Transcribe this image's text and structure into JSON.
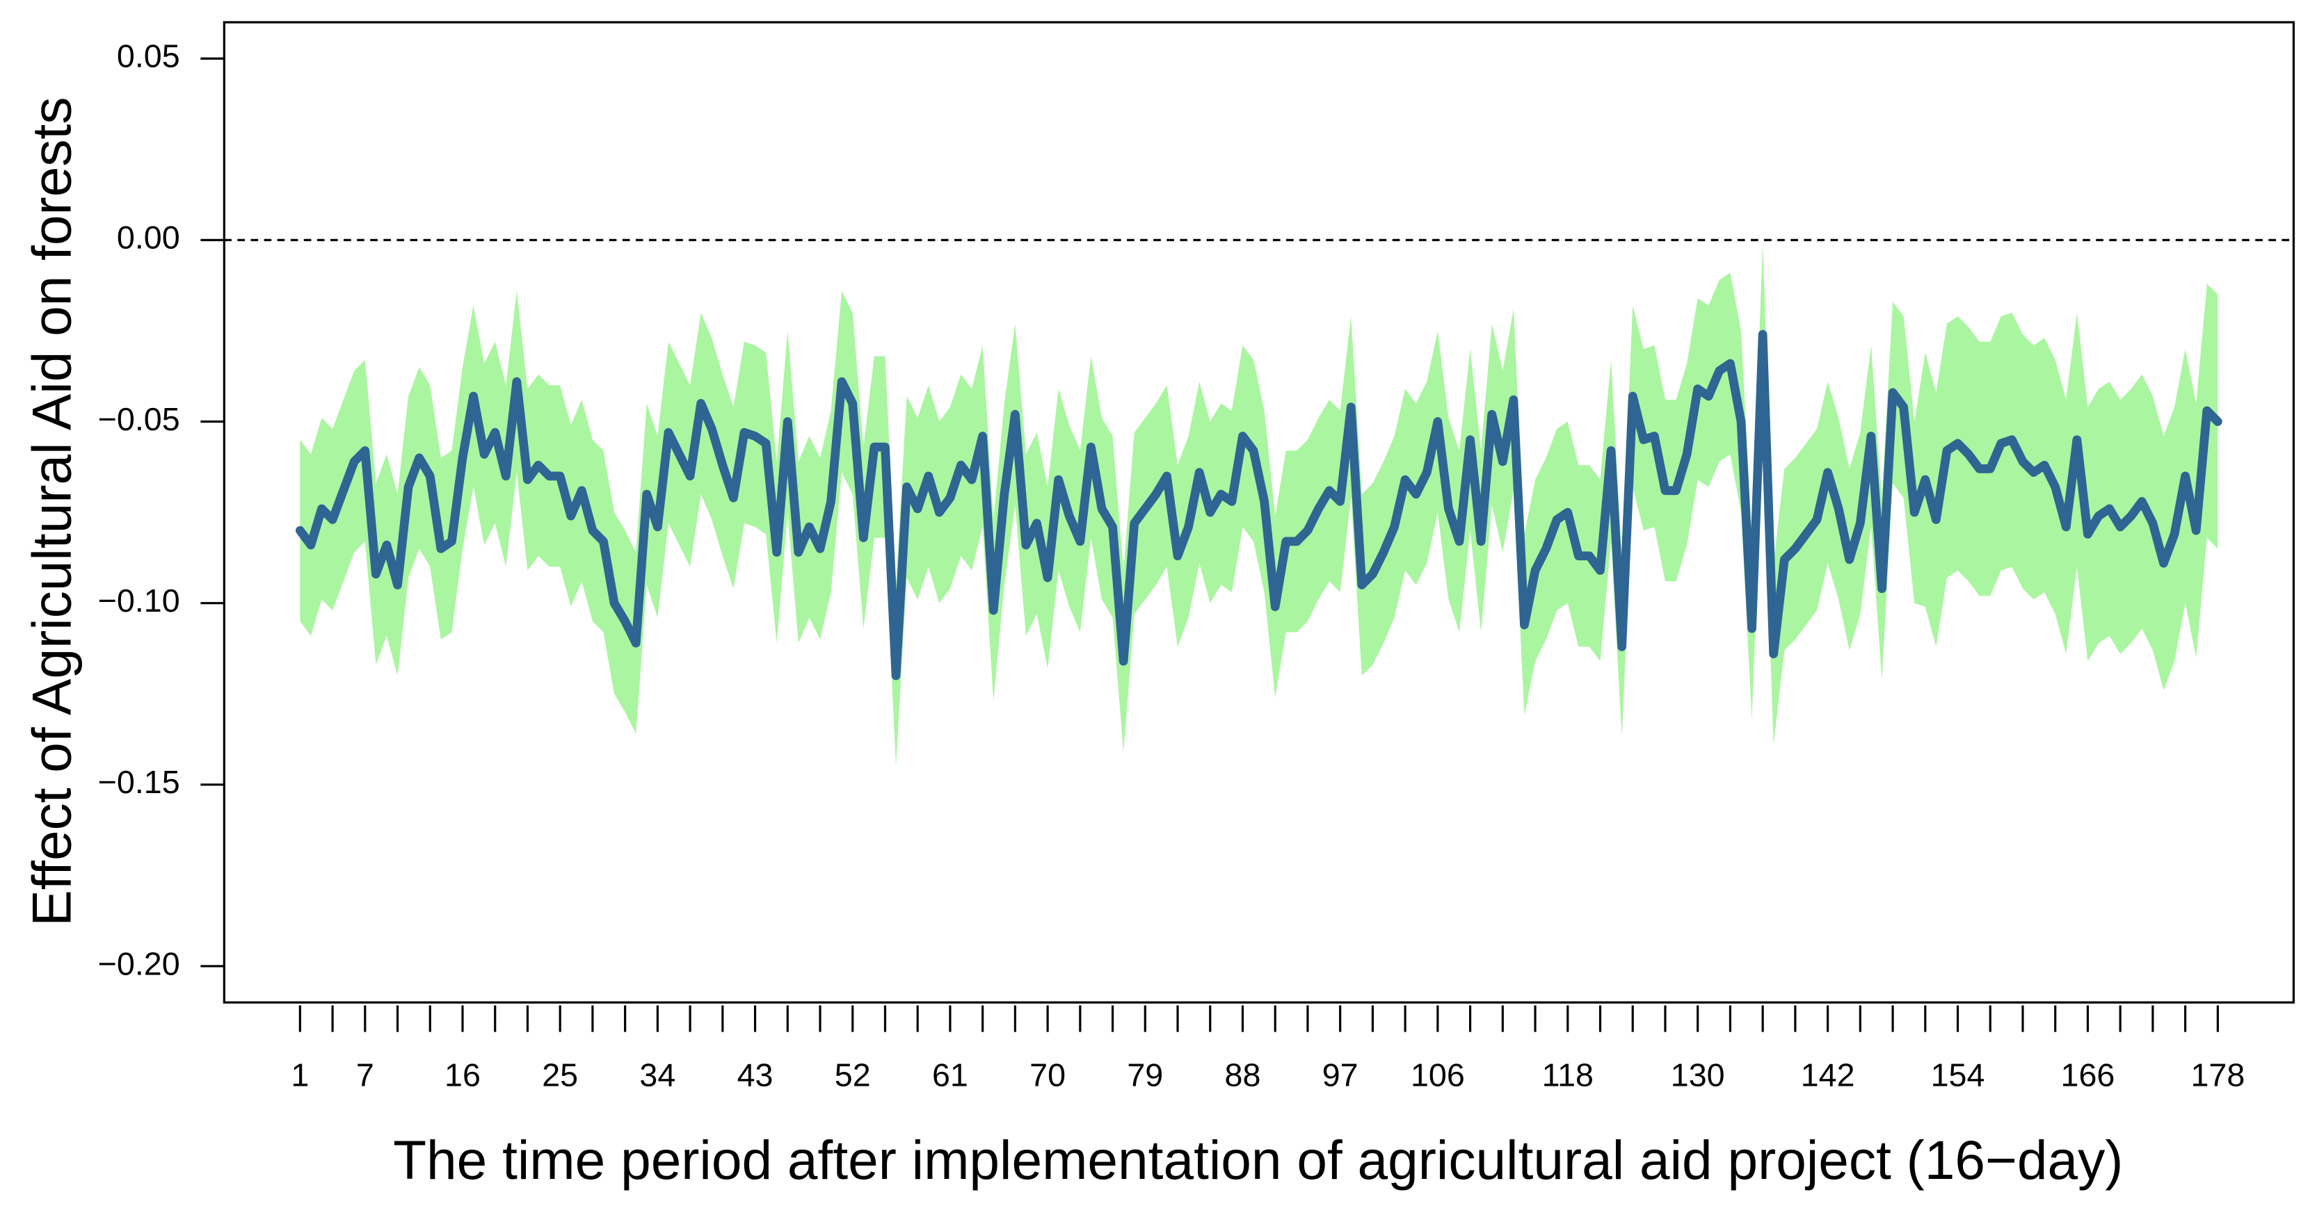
{
  "chart_data": {
    "type": "line",
    "xlabel": "The time period after implementation of agricultural aid project (16−day)",
    "ylabel": "Effect of Agricultural Aid on forests",
    "xlim": [
      -6,
      185
    ],
    "ylim": [
      -0.21,
      0.06
    ],
    "xticks": [
      1,
      {
        "value": 4,
        "label": null
      },
      7,
      {
        "value": 10,
        "label": null
      },
      {
        "value": 13,
        "label": null
      },
      16,
      {
        "value": 19,
        "label": null
      },
      {
        "value": 22,
        "label": null
      },
      25,
      {
        "value": 28,
        "label": null
      },
      {
        "value": 31,
        "label": null
      },
      34,
      {
        "value": 37,
        "label": null
      },
      {
        "value": 40,
        "label": null
      },
      43,
      {
        "value": 46,
        "label": null
      },
      {
        "value": 49,
        "label": null
      },
      52,
      {
        "value": 55,
        "label": null
      },
      {
        "value": 58,
        "label": null
      },
      61,
      {
        "value": 64,
        "label": null
      },
      {
        "value": 67,
        "label": null
      },
      70,
      {
        "value": 73,
        "label": null
      },
      {
        "value": 76,
        "label": null
      },
      79,
      {
        "value": 82,
        "label": null
      },
      {
        "value": 85,
        "label": null
      },
      88,
      {
        "value": 91,
        "label": null
      },
      {
        "value": 94,
        "label": null
      },
      97,
      {
        "value": 100,
        "label": null
      },
      {
        "value": 103,
        "label": null
      },
      106,
      {
        "value": 109,
        "label": null
      },
      {
        "value": 112,
        "label": null
      },
      {
        "value": 115,
        "label": null
      },
      118,
      {
        "value": 121,
        "label": null
      },
      {
        "value": 124,
        "label": null
      },
      {
        "value": 127,
        "label": null
      },
      130,
      {
        "value": 133,
        "label": null
      },
      {
        "value": 136,
        "label": null
      },
      {
        "value": 139,
        "label": null
      },
      142,
      {
        "value": 145,
        "label": null
      },
      {
        "value": 148,
        "label": null
      },
      {
        "value": 151,
        "label": null
      },
      154,
      {
        "value": 157,
        "label": null
      },
      {
        "value": 160,
        "label": null
      },
      {
        "value": 163,
        "label": null
      },
      166,
      {
        "value": 169,
        "label": null
      },
      {
        "value": 172,
        "label": null
      },
      {
        "value": 175,
        "label": null
      },
      178
    ],
    "yticks": [
      0.05,
      {
        "value": 0,
        "label": "0.00"
      },
      {
        "value": -0.05,
        "label": "−0.05"
      },
      {
        "value": -0.1,
        "label": "−0.10"
      },
      {
        "value": -0.15,
        "label": "−0.15"
      },
      {
        "value": -0.2,
        "label": "−0.20"
      }
    ],
    "reference_line": {
      "value": 0,
      "style": "dashed",
      "color": "#000000"
    },
    "x": [
      1,
      2,
      3,
      4,
      5,
      6,
      7,
      8,
      9,
      10,
      11,
      12,
      13,
      14,
      15,
      16,
      17,
      18,
      19,
      20,
      21,
      22,
      23,
      24,
      25,
      26,
      27,
      28,
      29,
      30,
      31,
      32,
      33,
      34,
      35,
      36,
      37,
      38,
      39,
      40,
      41,
      42,
      43,
      44,
      45,
      46,
      47,
      48,
      49,
      50,
      51,
      52,
      53,
      54,
      55,
      56,
      57,
      58,
      59,
      60,
      61,
      62,
      63,
      64,
      65,
      66,
      67,
      68,
      69,
      70,
      71,
      72,
      73,
      74,
      75,
      76,
      77,
      78,
      79,
      80,
      81,
      82,
      83,
      84,
      85,
      86,
      87,
      88,
      89,
      90,
      91,
      92,
      93,
      94,
      95,
      96,
      97,
      98,
      99,
      100,
      101,
      102,
      103,
      104,
      105,
      106,
      107,
      108,
      109,
      110,
      111,
      112,
      113,
      114,
      115,
      116,
      117,
      118,
      119,
      120,
      121,
      122,
      123,
      124,
      125,
      126,
      127,
      128,
      129,
      130,
      131,
      132,
      133,
      134,
      135,
      136,
      137,
      138,
      139,
      140,
      141,
      142,
      143,
      144,
      145,
      146,
      147,
      148,
      149,
      150,
      151,
      152,
      153,
      154,
      155,
      156,
      157,
      158,
      159,
      160,
      161,
      162,
      163,
      164,
      165,
      166,
      167,
      168,
      169,
      170,
      171,
      172,
      173,
      174,
      175,
      176,
      177,
      178
    ],
    "series": [
      {
        "color": "#2e6592",
        "values": [
          -0.08,
          -0.084,
          -0.074,
          -0.077,
          -0.069,
          -0.061,
          -0.058,
          -0.092,
          -0.084,
          -0.095,
          -0.068,
          -0.06,
          -0.065,
          -0.085,
          -0.083,
          -0.06,
          -0.043,
          -0.059,
          -0.053,
          -0.065,
          -0.039,
          -0.066,
          -0.062,
          -0.065,
          -0.065,
          -0.076,
          -0.069,
          -0.08,
          -0.083,
          -0.1,
          -0.105,
          -0.111,
          -0.07,
          -0.079,
          -0.053,
          -0.059,
          -0.065,
          -0.045,
          -0.052,
          -0.062,
          -0.071,
          -0.053,
          -0.054,
          -0.056,
          -0.086,
          -0.05,
          -0.086,
          -0.079,
          -0.085,
          -0.072,
          -0.039,
          -0.045,
          -0.082,
          -0.057,
          -0.057,
          -0.12,
          -0.068,
          -0.074,
          -0.065,
          -0.075,
          -0.071,
          -0.062,
          -0.066,
          -0.054,
          -0.102,
          -0.07,
          -0.048,
          -0.084,
          -0.078,
          -0.093,
          -0.066,
          -0.076,
          -0.083,
          -0.057,
          -0.074,
          -0.079,
          -0.116,
          -0.078,
          -0.074,
          -0.07,
          -0.065,
          -0.087,
          -0.079,
          -0.064,
          -0.075,
          -0.07,
          -0.072,
          -0.054,
          -0.058,
          -0.072,
          -0.101,
          -0.083,
          -0.083,
          -0.08,
          -0.074,
          -0.069,
          -0.072,
          -0.046,
          -0.095,
          -0.092,
          -0.086,
          -0.079,
          -0.066,
          -0.07,
          -0.064,
          -0.05,
          -0.074,
          -0.083,
          -0.055,
          -0.083,
          -0.048,
          -0.061,
          -0.044,
          -0.106,
          -0.091,
          -0.085,
          -0.077,
          -0.075,
          -0.087,
          -0.087,
          -0.091,
          -0.058,
          -0.112,
          -0.043,
          -0.055,
          -0.054,
          -0.069,
          -0.069,
          -0.059,
          -0.041,
          -0.043,
          -0.036,
          -0.034,
          -0.05,
          -0.107,
          -0.026,
          -0.114,
          -0.088,
          -0.085,
          -0.081,
          -0.077,
          -0.064,
          -0.074,
          -0.088,
          -0.078,
          -0.054,
          -0.096,
          -0.042,
          -0.046,
          -0.075,
          -0.066,
          -0.077,
          -0.058,
          -0.056,
          -0.059,
          -0.063,
          -0.063,
          -0.056,
          -0.055,
          -0.061,
          -0.064,
          -0.062,
          -0.068,
          -0.079,
          -0.055,
          -0.081,
          -0.076,
          -0.074,
          -0.079,
          -0.076,
          -0.072,
          -0.078,
          -0.089,
          -0.081,
          -0.065,
          -0.08,
          -0.047,
          -0.05
        ]
      }
    ],
    "band": {
      "color": "#aaf5a0",
      "upper": [
        -0.055,
        -0.059,
        -0.049,
        -0.052,
        -0.044,
        -0.036,
        -0.033,
        -0.067,
        -0.059,
        -0.07,
        -0.043,
        -0.035,
        -0.04,
        -0.06,
        -0.058,
        -0.035,
        -0.018,
        -0.034,
        -0.028,
        -0.04,
        -0.014,
        -0.041,
        -0.037,
        -0.04,
        -0.04,
        -0.051,
        -0.044,
        -0.055,
        -0.058,
        -0.075,
        -0.08,
        -0.086,
        -0.045,
        -0.054,
        -0.028,
        -0.034,
        -0.04,
        -0.02,
        -0.027,
        -0.037,
        -0.046,
        -0.028,
        -0.029,
        -0.031,
        -0.061,
        -0.025,
        -0.061,
        -0.054,
        -0.06,
        -0.047,
        -0.014,
        -0.02,
        -0.057,
        -0.032,
        -0.032,
        -0.095,
        -0.043,
        -0.049,
        -0.04,
        -0.05,
        -0.046,
        -0.037,
        -0.041,
        -0.029,
        -0.077,
        -0.045,
        -0.023,
        -0.059,
        -0.053,
        -0.068,
        -0.041,
        -0.051,
        -0.058,
        -0.032,
        -0.049,
        -0.054,
        -0.091,
        -0.053,
        -0.049,
        -0.045,
        -0.04,
        -0.062,
        -0.054,
        -0.039,
        -0.05,
        -0.045,
        -0.047,
        -0.029,
        -0.033,
        -0.047,
        -0.076,
        -0.058,
        -0.058,
        -0.055,
        -0.049,
        -0.044,
        -0.047,
        -0.021,
        -0.07,
        -0.067,
        -0.061,
        -0.054,
        -0.041,
        -0.045,
        -0.039,
        -0.025,
        -0.049,
        -0.058,
        -0.03,
        -0.058,
        -0.023,
        -0.036,
        -0.019,
        -0.081,
        -0.066,
        -0.06,
        -0.052,
        -0.05,
        -0.062,
        -0.062,
        -0.066,
        -0.033,
        -0.087,
        -0.018,
        -0.03,
        -0.029,
        -0.044,
        -0.044,
        -0.034,
        -0.016,
        -0.018,
        -0.011,
        -0.009,
        -0.025,
        -0.082,
        -0.001,
        -0.089,
        -0.063,
        -0.06,
        -0.056,
        -0.052,
        -0.039,
        -0.049,
        -0.063,
        -0.053,
        -0.029,
        -0.071,
        -0.017,
        -0.021,
        -0.05,
        -0.031,
        -0.042,
        -0.023,
        -0.021,
        -0.024,
        -0.028,
        -0.028,
        -0.021,
        -0.02,
        -0.026,
        -0.029,
        -0.027,
        -0.033,
        -0.044,
        -0.02,
        -0.046,
        -0.041,
        -0.039,
        -0.044,
        -0.041,
        -0.037,
        -0.043,
        -0.054,
        -0.046,
        -0.03,
        -0.045,
        -0.012,
        -0.015
      ],
      "lower": [
        -0.105,
        -0.109,
        -0.099,
        -0.102,
        -0.094,
        -0.086,
        -0.083,
        -0.117,
        -0.109,
        -0.12,
        -0.093,
        -0.085,
        -0.09,
        -0.11,
        -0.108,
        -0.085,
        -0.068,
        -0.084,
        -0.078,
        -0.09,
        -0.064,
        -0.091,
        -0.087,
        -0.09,
        -0.09,
        -0.101,
        -0.094,
        -0.105,
        -0.108,
        -0.125,
        -0.13,
        -0.136,
        -0.095,
        -0.104,
        -0.078,
        -0.084,
        -0.09,
        -0.07,
        -0.077,
        -0.087,
        -0.096,
        -0.078,
        -0.079,
        -0.081,
        -0.111,
        -0.075,
        -0.111,
        -0.104,
        -0.11,
        -0.097,
        -0.064,
        -0.07,
        -0.107,
        -0.082,
        -0.082,
        -0.145,
        -0.093,
        -0.099,
        -0.09,
        -0.1,
        -0.096,
        -0.087,
        -0.091,
        -0.079,
        -0.127,
        -0.095,
        -0.073,
        -0.109,
        -0.103,
        -0.118,
        -0.091,
        -0.101,
        -0.108,
        -0.082,
        -0.099,
        -0.104,
        -0.141,
        -0.103,
        -0.099,
        -0.095,
        -0.09,
        -0.112,
        -0.104,
        -0.089,
        -0.1,
        -0.095,
        -0.097,
        -0.079,
        -0.083,
        -0.097,
        -0.126,
        -0.108,
        -0.108,
        -0.105,
        -0.099,
        -0.094,
        -0.097,
        -0.071,
        -0.12,
        -0.117,
        -0.111,
        -0.104,
        -0.091,
        -0.095,
        -0.089,
        -0.075,
        -0.099,
        -0.108,
        -0.08,
        -0.108,
        -0.073,
        -0.086,
        -0.069,
        -0.131,
        -0.116,
        -0.11,
        -0.102,
        -0.1,
        -0.112,
        -0.112,
        -0.116,
        -0.083,
        -0.137,
        -0.068,
        -0.08,
        -0.079,
        -0.094,
        -0.094,
        -0.084,
        -0.066,
        -0.068,
        -0.061,
        -0.059,
        -0.075,
        -0.132,
        -0.051,
        -0.139,
        -0.113,
        -0.11,
        -0.106,
        -0.102,
        -0.089,
        -0.099,
        -0.113,
        -0.103,
        -0.079,
        -0.121,
        -0.067,
        -0.071,
        -0.1,
        -0.101,
        -0.112,
        -0.093,
        -0.091,
        -0.094,
        -0.098,
        -0.098,
        -0.091,
        -0.09,
        -0.096,
        -0.099,
        -0.097,
        -0.103,
        -0.114,
        -0.09,
        -0.116,
        -0.111,
        -0.109,
        -0.114,
        -0.111,
        -0.107,
        -0.113,
        -0.124,
        -0.116,
        -0.1,
        -0.115,
        -0.082,
        -0.085
      ]
    }
  }
}
